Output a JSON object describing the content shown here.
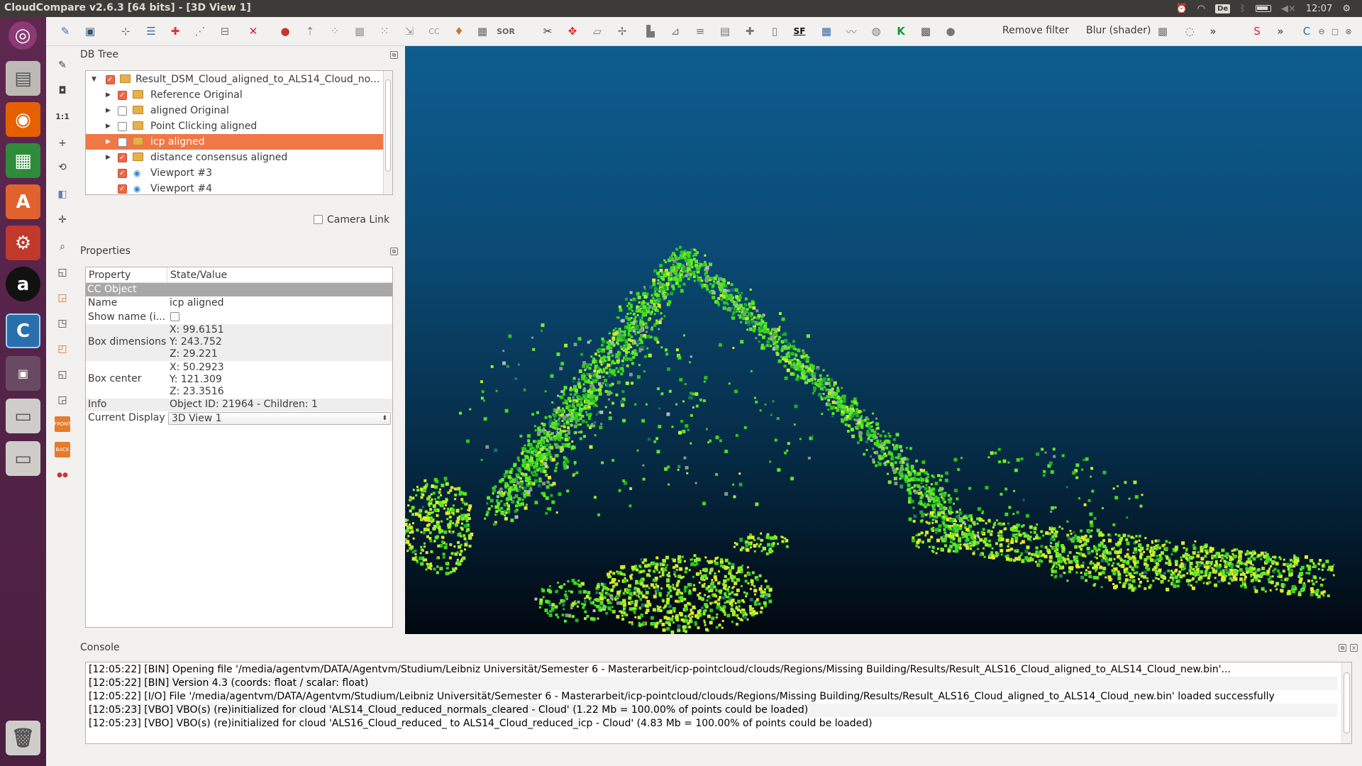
{
  "window": {
    "title": "CloudCompare v2.6.3 [64 bits] - [3D View 1]"
  },
  "tray": {
    "keyboard": "De",
    "time": "12:07"
  },
  "launcher": {
    "items": [
      "ubuntu-dash",
      "file-manager",
      "firefox",
      "spreadsheet",
      "software-center",
      "system-settings",
      "amazon",
      "cloudcompare",
      "workspace-switcher",
      "drive",
      "drive-2",
      "trash"
    ]
  },
  "toolbar": {
    "remove_filter": "Remove filter",
    "blur_shader": "Blur (shader)",
    "sf_label": "SF",
    "sor_label": "SOR"
  },
  "dbtree": {
    "title": "DB Tree",
    "items": [
      {
        "label": "Result_DSM_Cloud_aligned_to_ALS14_Cloud_no...",
        "checked": true,
        "level": 0
      },
      {
        "label": "Reference Original",
        "checked": true,
        "level": 1
      },
      {
        "label": "aligned Original",
        "checked": false,
        "level": 1
      },
      {
        "label": "Point Clicking aligned",
        "checked": false,
        "level": 1
      },
      {
        "label": "icp aligned",
        "checked": false,
        "level": 1,
        "selected": true
      },
      {
        "label": "distance consensus aligned",
        "checked": true,
        "level": 1
      },
      {
        "label": "Viewport #3",
        "checked": true,
        "level": 1
      },
      {
        "label": "Viewport #4",
        "checked": true,
        "level": 1
      }
    ],
    "camera_link": "Camera Link"
  },
  "properties": {
    "title": "Properties",
    "col_property": "Property",
    "col_value": "State/Value",
    "section": "CC Object",
    "name_key": "Name",
    "name_val": "icp aligned",
    "show_name_key": "Show name (i...",
    "box_dim_key": "Box dimensions",
    "box_dim_x": "X: 99.6151",
    "box_dim_y": "Y: 243.752",
    "box_dim_z": "Z: 29.221",
    "box_center_key": "Box center",
    "box_center_x": "X: 50.2923",
    "box_center_y": "Y: 121.309",
    "box_center_z": "Z: 23.3516",
    "info_key": "Info",
    "info_val": "Object ID: 21964 - Children: 1",
    "display_key": "Current Display",
    "display_val": "3D View 1"
  },
  "console": {
    "title": "Console",
    "lines": [
      "[12:05:22] [BIN] Opening file '/media/agentvm/DATA/Agentvm/Studium/Leibniz Universität/Semester 6 - Masterarbeit/icp-pointcloud/clouds/Regions/Missing Building/Results/Result_ALS16_Cloud_aligned_to_ALS14_Cloud_new.bin'...",
      "[12:05:22] [BIN] Version 4.3 (coords: float / scalar: float)",
      "[12:05:22] [I/O] File '/media/agentvm/DATA/Agentvm/Studium/Leibniz Universität/Semester 6 - Masterarbeit/icp-pointcloud/clouds/Regions/Missing Building/Results/Result_ALS16_Cloud_aligned_to_ALS14_Cloud_new.bin' loaded successfully",
      "[12:05:23] [VBO] VBO(s) (re)initialized for cloud 'ALS14_Cloud_reduced_normals_cleared - Cloud' (1.22 Mb = 100.00% of points could be loaded)",
      "[12:05:23] [VBO] VBO(s) (re)initialized for cloud 'ALS16_Cloud_reduced_ to ALS14_Cloud_reduced_icp - Cloud' (4.83 Mb = 100.00% of points could be loaded)"
    ]
  },
  "colors": {
    "selection": "#f07746",
    "launcher": "#5e2750",
    "view_top": "#0e5d90",
    "view_bottom": "#010810"
  }
}
